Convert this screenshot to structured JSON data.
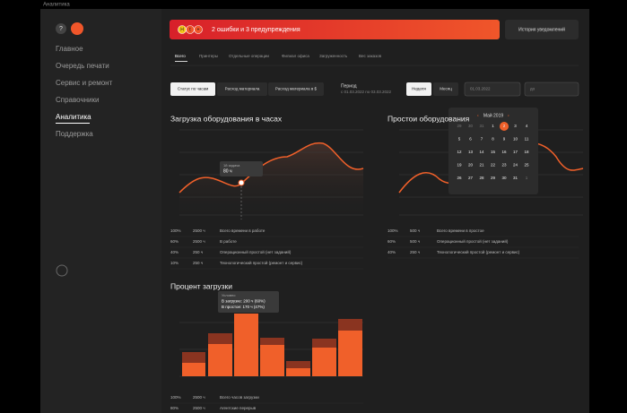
{
  "window": {
    "title": "Аналитика"
  },
  "sidebar": {
    "items": [
      "Главное",
      "Очередь печати",
      "Сервис и ремонт",
      "Справочники",
      "Аналитика",
      "Поддержка"
    ],
    "active": "Аналитика"
  },
  "banner": {
    "badges": [
      "Н",
      "t",
      "+"
    ],
    "message": "2 ошибки и 3 предупреждения",
    "button": "История уведомлений"
  },
  "tabs": {
    "items": [
      "Всего",
      "Принтеры",
      "Отдельные операции",
      "Филиал офиса",
      "Загруженность",
      "Вес заказов"
    ],
    "active": "Всего"
  },
  "filters": {
    "modes": [
      "Статус по часам",
      "Расход материала",
      "Расход материала в $"
    ],
    "active_mode": "Статус по часам",
    "period_label": "Период",
    "period_value": "с 01.03.2022 по 03.03.2022",
    "ranges": [
      "Неделя",
      "Месяц"
    ],
    "active_range": "Неделя",
    "date_from": "01.03.2022",
    "date_to": "до"
  },
  "load_chart": {
    "title": "Загрузка оборудования в часах",
    "tooltip": [
      "1й задача",
      "80 ч"
    ],
    "legend": [
      [
        "100%",
        "2500 ч",
        "Всего времени в работе"
      ],
      [
        "60%",
        "2500 ч",
        "В работе"
      ],
      [
        "40%",
        "250 ч",
        "Операционный простой (нет заданий)"
      ],
      [
        "10%",
        "250 ч",
        "Технологический простой (ремонт и сервис)"
      ]
    ]
  },
  "idle_chart": {
    "title": "Простои оборудования",
    "legend": [
      [
        "100%",
        "500 ч",
        "Всего времени в простое"
      ],
      [
        "60%",
        "500 ч",
        "Операционный простой (нет заданий)"
      ],
      [
        "40%",
        "250 ч",
        "Технологический простой (ремонт и сервис)"
      ]
    ]
  },
  "calendar": {
    "month": "Май 2019",
    "days": [
      [
        "29",
        "30",
        "31",
        "1",
        "2",
        "3",
        "4"
      ],
      [
        "5",
        "6",
        "7",
        "8",
        "9",
        "10",
        "11"
      ],
      [
        "12",
        "13",
        "14",
        "15",
        "16",
        "17",
        "18"
      ],
      [
        "19",
        "20",
        "21",
        "22",
        "23",
        "24",
        "25"
      ],
      [
        "26",
        "27",
        "28",
        "29",
        "30",
        "31",
        "1"
      ]
    ],
    "selected": "2"
  },
  "percent_chart": {
    "title": "Процент загрузки",
    "tooltip": [
      "Условно",
      "В загрузке: 200 ч (60%)",
      "В простое: 170 ч (47%)"
    ],
    "legend": [
      [
        "100%",
        "2500 ч",
        "Всего часов загрузки"
      ],
      [
        "80%",
        "2500 ч",
        "Агентские перерыв"
      ]
    ]
  }
}
